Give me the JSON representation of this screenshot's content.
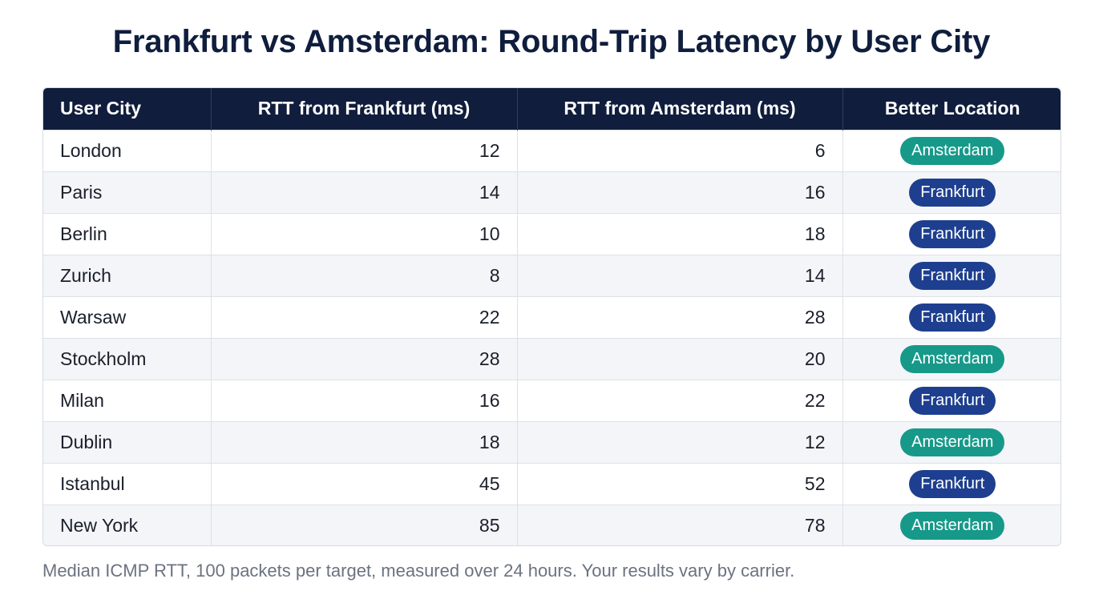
{
  "colors": {
    "header_bg": "#111d3c",
    "frankfurt": "#1e3f8f",
    "amsterdam": "#17998a"
  },
  "chart_data": {
    "type": "table",
    "title": "Frankfurt vs Amsterdam: Round-Trip Latency by User City",
    "columns": [
      "User City",
      "RTT from Frankfurt (ms)",
      "RTT from Amsterdam (ms)",
      "Better Location"
    ],
    "rows": [
      {
        "city": "London",
        "frankfurt": 12,
        "amsterdam": 6,
        "better": "Amsterdam"
      },
      {
        "city": "Paris",
        "frankfurt": 14,
        "amsterdam": 16,
        "better": "Frankfurt"
      },
      {
        "city": "Berlin",
        "frankfurt": 10,
        "amsterdam": 18,
        "better": "Frankfurt"
      },
      {
        "city": "Zurich",
        "frankfurt": 8,
        "amsterdam": 14,
        "better": "Frankfurt"
      },
      {
        "city": "Warsaw",
        "frankfurt": 22,
        "amsterdam": 28,
        "better": "Frankfurt"
      },
      {
        "city": "Stockholm",
        "frankfurt": 28,
        "amsterdam": 20,
        "better": "Amsterdam"
      },
      {
        "city": "Milan",
        "frankfurt": 16,
        "amsterdam": 22,
        "better": "Frankfurt"
      },
      {
        "city": "Dublin",
        "frankfurt": 18,
        "amsterdam": 12,
        "better": "Amsterdam"
      },
      {
        "city": "Istanbul",
        "frankfurt": 45,
        "amsterdam": 52,
        "better": "Frankfurt"
      },
      {
        "city": "New York",
        "frankfurt": 85,
        "amsterdam": 78,
        "better": "Amsterdam"
      }
    ],
    "footnote": "Median ICMP RTT, 100 packets per target, measured over 24 hours. Your results vary by carrier."
  }
}
